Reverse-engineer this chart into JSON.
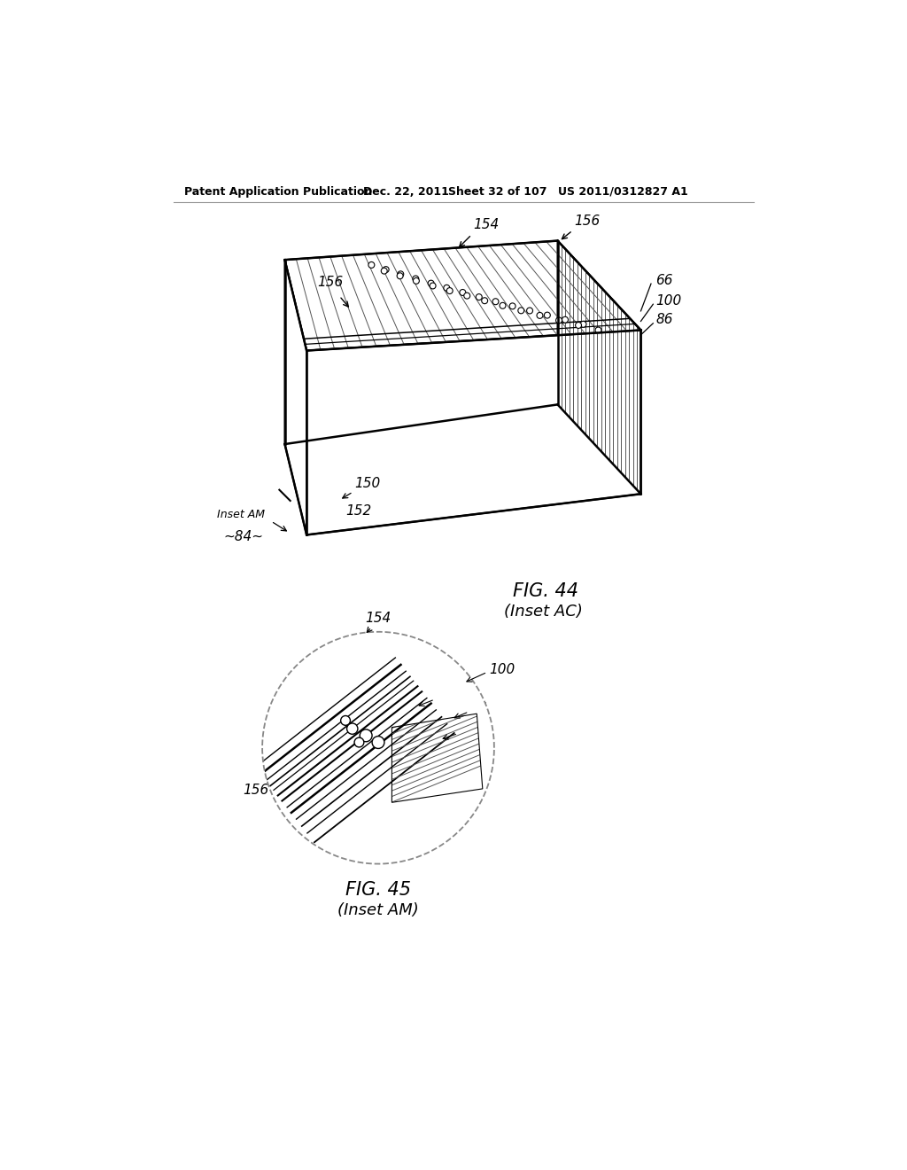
{
  "header_left": "Patent Application Publication",
  "header_date": "Dec. 22, 2011",
  "header_sheet": "Sheet 32 of 107",
  "header_patent": "US 2011/0312827 A1",
  "fig44_caption": "FIG. 44",
  "fig44_subcaption": "(Inset AC)",
  "fig45_caption": "FIG. 45",
  "fig45_subcaption": "(Inset AM)",
  "bg_color": "#ffffff",
  "line_color": "#000000"
}
